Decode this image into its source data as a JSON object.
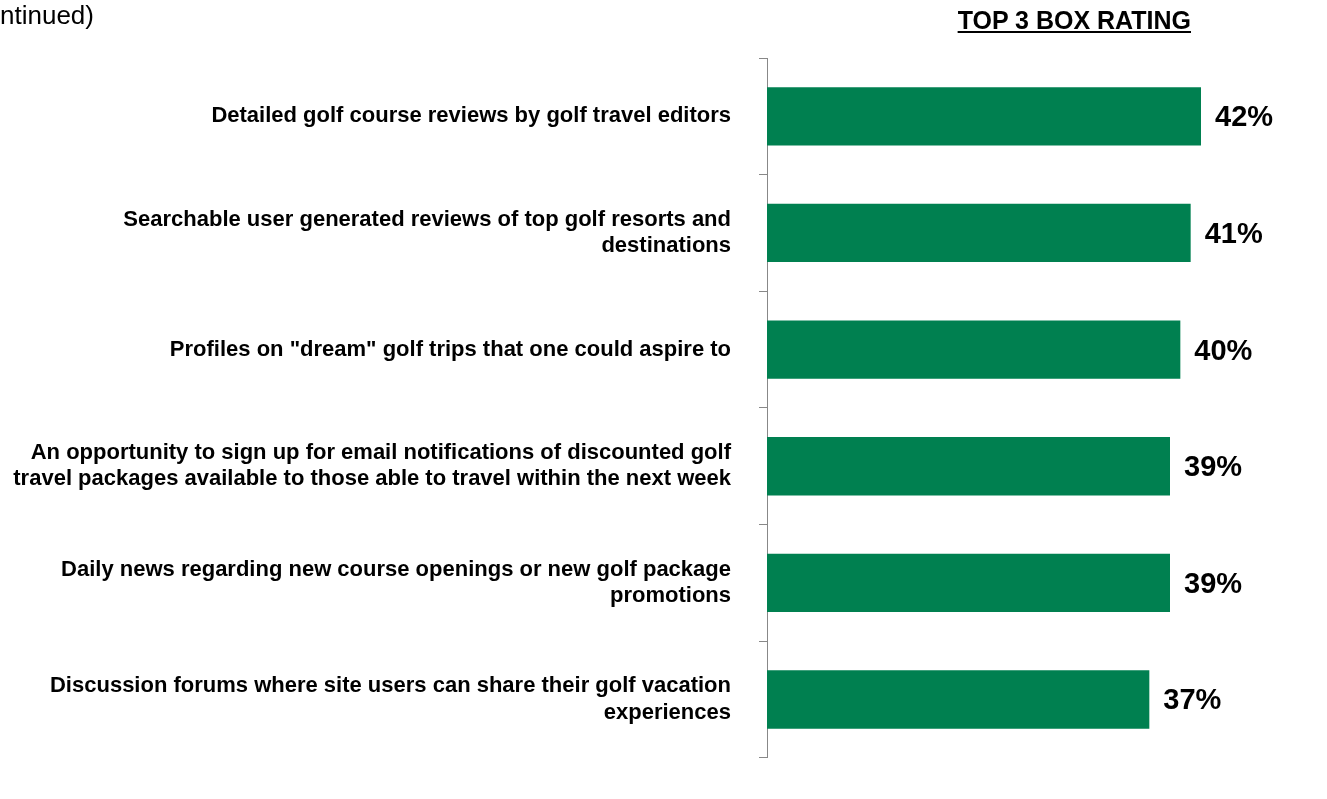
{
  "chart_data": {
    "type": "bar",
    "orientation": "horizontal",
    "title": "TOP 3 BOX RATING",
    "annotations": [
      "ntinued)"
    ],
    "categories": [
      "Detailed golf course reviews by golf travel editors",
      "Searchable user generated reviews of top golf resorts and destinations",
      "Profiles on \"dream\" golf trips that one could aspire to",
      "An opportunity to sign up for email notifications of discounted golf travel packages available to those able to travel within the next week",
      "Daily news regarding new course openings or new golf package promotions",
      "Discussion forums where site users can share their golf vacation experiences"
    ],
    "values": [
      42,
      41,
      40,
      39,
      39,
      37
    ],
    "value_labels": [
      "42%",
      "41%",
      "40%",
      "39%",
      "39%",
      "37%"
    ],
    "color": "#008050",
    "tick_labels": "y",
    "legend": false
  }
}
